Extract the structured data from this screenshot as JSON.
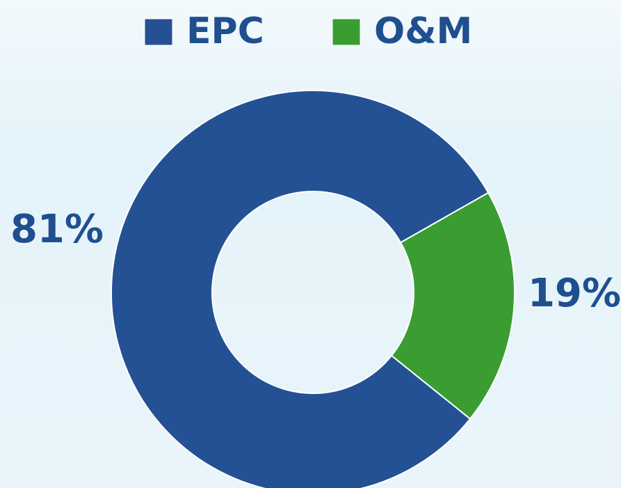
{
  "chart_data": {
    "type": "donut",
    "categories": [
      "EPC",
      "O&M"
    ],
    "values": [
      81,
      19
    ],
    "value_labels": [
      "81%",
      "19%"
    ],
    "colors": [
      "#245193",
      "#3a9d32"
    ]
  }
}
